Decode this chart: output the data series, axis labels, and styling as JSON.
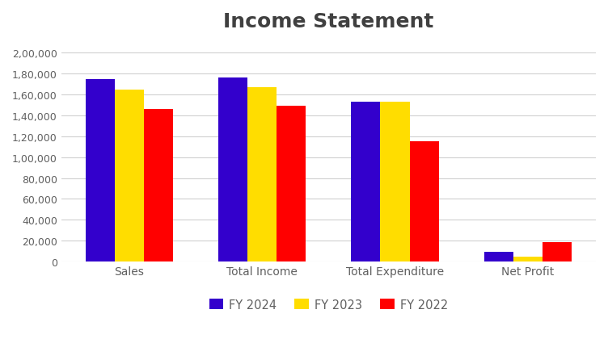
{
  "title": "Income Statement",
  "categories": [
    "Sales",
    "Total Income",
    "Total Expenditure",
    "Net Profit"
  ],
  "series": {
    "FY 2024": [
      175000,
      176000,
      153000,
      9000
    ],
    "FY 2023": [
      165000,
      167000,
      153000,
      5000
    ],
    "FY 2022": [
      146000,
      149000,
      115000,
      19000
    ]
  },
  "colors": {
    "FY 2024": "#3300CC",
    "FY 2023": "#FFDD00",
    "FY 2022": "#FF0000"
  },
  "ylim": [
    0,
    210000
  ],
  "yticks": [
    0,
    20000,
    40000,
    60000,
    80000,
    100000,
    120000,
    140000,
    160000,
    180000,
    200000
  ],
  "ytick_labels": [
    "0",
    "20,000",
    "40,000",
    "60,000",
    "80,000",
    "1,00,000",
    "1,20,000",
    "1,40,000",
    "1,60,000",
    "1,80,000",
    "2,00,000"
  ],
  "title_fontsize": 18,
  "title_fontweight": "bold",
  "title_color": "#404040",
  "background_color": "#ffffff",
  "tick_label_color": "#606060",
  "legend_position": "lower center",
  "bar_width": 0.22,
  "grid_color": "#d0d0d0",
  "grid_linewidth": 0.8
}
